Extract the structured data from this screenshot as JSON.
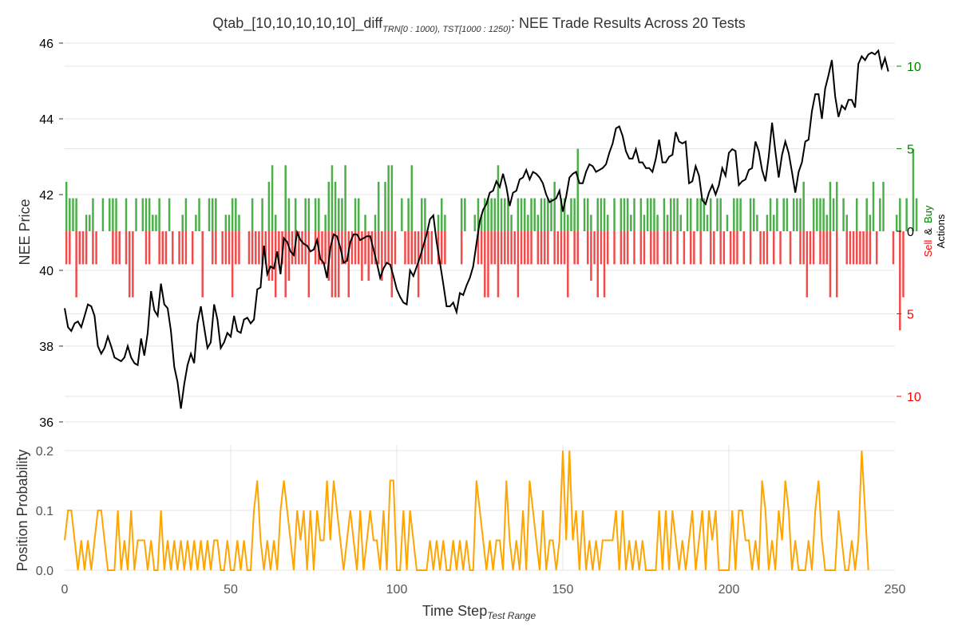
{
  "chart_title": {
    "prefix": "Qtab_[10,10,10,10,10]_diff",
    "subscript": "TRN[0 : 1000), TST[1000 : 1250)",
    "suffix": ": NEE Trade Results Across 20 Tests"
  },
  "colors": {
    "price": "#000000",
    "buy": "#4daf4a",
    "sell": "#f04c4c",
    "position": "#ffa500",
    "buy_text": "#008000",
    "sell_text": "#ff0000"
  },
  "chart_data": [
    {
      "type": "line",
      "name": "price-panel",
      "ylabel": "NEE Price",
      "ylim": [
        35.8,
        46.2
      ],
      "xlim": [
        0,
        250
      ],
      "yticks": [
        36,
        38,
        40,
        42,
        44,
        46
      ],
      "grid": true,
      "x": "0..249 (one value per time step)",
      "y": [
        39.0,
        38.5,
        38.4,
        38.6,
        38.65,
        38.5,
        38.8,
        39.1,
        39.05,
        38.8,
        38.0,
        37.8,
        37.95,
        38.25,
        38.0,
        37.7,
        37.65,
        37.6,
        37.7,
        38.0,
        37.7,
        37.55,
        37.5,
        38.2,
        37.75,
        38.35,
        39.45,
        38.95,
        38.8,
        39.65,
        39.1,
        39.0,
        38.4,
        37.45,
        37.05,
        36.35,
        37.0,
        37.5,
        37.8,
        37.55,
        38.6,
        39.05,
        38.5,
        37.95,
        38.1,
        39.1,
        38.7,
        37.95,
        38.1,
        38.35,
        38.25,
        38.8,
        38.4,
        38.35,
        38.7,
        38.75,
        38.6,
        38.7,
        39.5,
        39.55,
        40.65,
        39.9,
        40.1,
        40.05,
        40.5,
        39.9,
        40.85,
        40.75,
        40.5,
        40.4,
        41.0,
        40.8,
        40.7,
        40.65,
        40.5,
        40.55,
        40.8,
        40.3,
        40.2,
        39.8,
        40.6,
        40.95,
        40.9,
        40.6,
        40.2,
        40.25,
        40.75,
        40.95,
        40.95,
        40.8,
        40.85,
        40.9,
        40.9,
        40.55,
        40.2,
        39.8,
        40.05,
        40.2,
        40.15,
        39.85,
        39.5,
        39.3,
        39.15,
        39.1,
        40.0,
        39.85,
        40.1,
        40.35,
        40.65,
        40.95,
        41.35,
        41.45,
        40.75,
        40.2,
        39.65,
        39.05,
        39.05,
        39.15,
        38.9,
        39.4,
        39.35,
        39.6,
        39.8,
        40.1,
        40.7,
        41.3,
        41.6,
        41.75,
        42.05,
        42.1,
        42.35,
        42.2,
        42.55,
        42.2,
        41.7,
        42.05,
        42.1,
        42.4,
        42.45,
        42.65,
        42.4,
        42.6,
        42.55,
        42.45,
        42.3,
        42.0,
        41.8,
        41.85,
        41.9,
        42.1,
        41.55,
        41.95,
        42.45,
        42.55,
        42.6,
        42.3,
        42.3,
        42.6,
        42.8,
        42.75,
        42.6,
        42.65,
        42.7,
        42.8,
        43.1,
        43.35,
        43.75,
        43.8,
        43.55,
        43.15,
        42.95,
        42.95,
        43.2,
        42.85,
        42.85,
        42.7,
        42.7,
        42.6,
        42.95,
        43.45,
        42.85,
        42.85,
        43.0,
        43.05,
        43.65,
        43.4,
        43.35,
        43.4,
        42.3,
        42.35,
        42.75,
        42.5,
        41.85,
        41.75,
        42.05,
        42.25,
        42.0,
        42.25,
        42.7,
        42.5,
        43.1,
        43.2,
        43.15,
        42.25,
        42.35,
        42.4,
        42.65,
        42.7,
        43.4,
        43.15,
        42.65,
        42.35,
        43.0,
        43.9,
        43.15,
        42.45,
        43.05,
        43.4,
        43.1,
        42.6,
        42.05,
        42.6,
        42.85,
        43.4,
        43.45,
        44.2,
        44.65,
        44.65,
        44.0,
        44.8,
        45.15,
        45.55,
        44.6,
        44.05,
        44.35,
        44.25,
        44.5,
        44.5,
        44.3,
        45.45,
        45.65,
        45.55,
        45.7,
        45.75,
        45.7,
        45.8,
        45.35,
        45.6,
        45.25
      ]
    },
    {
      "type": "bar",
      "name": "trade-actions",
      "ylabel_parts": [
        "Sell",
        "&",
        "Buy",
        "Actions"
      ],
      "yticks": [
        10,
        5,
        0,
        5,
        10
      ],
      "ylim": [
        -12,
        12
      ],
      "x": "0..249 (one bar pair per time step)",
      "buy": [
        3,
        2,
        2,
        2,
        0,
        0,
        1,
        1,
        2,
        0,
        0,
        2,
        0,
        2,
        2,
        2,
        0,
        0,
        2,
        0,
        0,
        2,
        0,
        2,
        2,
        2,
        1,
        1,
        2,
        0,
        0,
        2,
        0,
        0,
        0,
        1,
        2,
        0,
        0,
        1,
        2,
        0,
        0,
        2,
        2,
        2,
        0,
        0,
        1,
        1,
        2,
        2,
        1,
        0,
        0,
        0,
        2,
        0,
        0,
        2,
        0,
        3,
        4,
        1,
        0,
        0,
        4,
        2,
        0,
        2,
        0,
        0,
        2,
        2,
        0,
        2,
        2,
        0,
        1,
        3,
        4,
        3,
        2,
        2,
        4,
        0,
        0,
        2,
        2,
        0,
        1,
        0,
        0,
        1,
        3,
        0,
        3,
        4,
        4,
        0,
        0,
        2,
        0,
        2,
        4,
        0,
        0,
        2,
        2,
        0,
        0,
        0,
        1,
        2,
        1,
        0,
        0,
        0,
        0,
        2,
        2,
        0,
        0,
        1,
        2,
        1,
        2,
        2,
        2,
        2,
        4,
        2,
        2,
        2,
        1,
        0,
        2,
        2,
        2,
        1,
        2,
        2,
        1,
        2,
        2,
        2,
        2,
        3,
        0,
        2,
        2,
        1,
        2,
        2,
        5,
        0,
        2,
        2,
        1,
        0,
        2,
        2,
        2,
        1,
        0,
        2,
        0,
        2,
        2,
        2,
        1,
        2,
        0,
        2,
        1,
        2,
        2,
        2,
        1,
        0,
        2,
        1,
        2,
        2,
        2,
        1,
        0,
        2,
        2,
        0,
        2,
        2,
        2,
        1,
        2,
        0,
        2,
        2,
        0,
        1,
        0,
        2,
        2,
        2,
        0,
        0,
        2,
        2,
        1,
        0,
        0,
        1,
        2,
        1,
        2,
        0,
        2,
        2,
        0,
        2,
        2,
        2,
        3,
        0,
        0,
        2,
        2,
        2,
        2,
        1,
        3,
        2,
        3,
        0,
        2,
        1,
        0,
        0,
        2,
        0,
        0,
        2,
        1,
        3,
        0,
        2,
        3,
        0,
        0,
        0,
        1,
        2,
        0,
        2,
        0,
        5,
        2
      ],
      "sell": [
        2,
        2,
        0,
        4,
        2,
        2,
        2,
        0,
        2,
        2,
        0,
        0,
        0,
        0,
        2,
        2,
        2,
        0,
        2,
        4,
        4,
        0,
        0,
        0,
        2,
        2,
        0,
        0,
        2,
        2,
        2,
        0,
        2,
        0,
        2,
        2,
        2,
        0,
        2,
        0,
        0,
        4,
        0,
        0,
        2,
        2,
        0,
        2,
        2,
        2,
        4,
        2,
        2,
        0,
        0,
        2,
        2,
        2,
        2,
        2,
        2,
        3,
        3,
        4,
        2,
        2,
        4,
        3,
        2,
        2,
        2,
        2,
        2,
        4,
        0,
        2,
        2,
        2,
        2,
        3,
        4,
        4,
        4,
        2,
        2,
        4,
        2,
        2,
        2,
        3,
        2,
        3,
        2,
        2,
        2,
        3,
        2,
        2,
        4,
        2,
        0,
        0,
        2,
        2,
        2,
        2,
        4,
        2,
        2,
        2,
        2,
        0,
        2,
        2,
        2,
        0,
        0,
        0,
        0,
        2,
        0,
        0,
        0,
        0,
        2,
        2,
        4,
        4,
        2,
        2,
        4,
        2,
        2,
        2,
        2,
        2,
        4,
        2,
        2,
        2,
        2,
        0,
        2,
        2,
        2,
        2,
        0,
        2,
        2,
        2,
        2,
        4,
        0,
        2,
        2,
        0,
        0,
        2,
        3,
        2,
        4,
        2,
        4,
        2,
        0,
        2,
        0,
        2,
        2,
        2,
        0,
        2,
        0,
        2,
        2,
        0,
        2,
        2,
        2,
        0,
        2,
        2,
        2,
        0,
        2,
        0,
        2,
        0,
        2,
        2,
        0,
        2,
        0,
        0,
        2,
        2,
        0,
        2,
        2,
        0,
        2,
        2,
        2,
        0,
        2,
        0,
        2,
        0,
        0,
        2,
        2,
        2,
        0,
        2,
        0,
        2,
        0,
        0,
        2,
        0,
        0,
        2,
        2,
        4,
        2,
        2,
        0,
        2,
        2,
        2,
        4,
        0,
        4,
        0,
        0,
        2,
        2,
        2,
        2,
        2,
        2,
        2,
        2,
        0,
        2,
        0,
        0,
        0,
        0,
        2,
        0,
        6,
        4
      ]
    },
    {
      "type": "line",
      "name": "position-panel",
      "ylabel": "Position Probability",
      "xlabel": "Time Step",
      "xlabel_sub": "Test Range",
      "ylim": [
        0,
        0.21
      ],
      "xlim": [
        0,
        250
      ],
      "yticks": [
        "0.0",
        "0.1",
        "0.2"
      ],
      "xticks": [
        0,
        50,
        100,
        150,
        200,
        250
      ],
      "grid": true,
      "y": [
        0.05,
        0.1,
        0.1,
        0.05,
        0,
        0.05,
        0,
        0.05,
        0,
        0.05,
        0.1,
        0.1,
        0.05,
        0,
        0,
        0,
        0.1,
        0,
        0.05,
        0,
        0.1,
        0,
        0.05,
        0.05,
        0.05,
        0,
        0.05,
        0,
        0,
        0.1,
        0,
        0.05,
        0,
        0.05,
        0,
        0.05,
        0,
        0.05,
        0,
        0.05,
        0,
        0.05,
        0,
        0.05,
        0,
        0.05,
        0.05,
        0,
        0,
        0.05,
        0,
        0,
        0.05,
        0,
        0.05,
        0,
        0,
        0.1,
        0.15,
        0.05,
        0,
        0.05,
        0,
        0.05,
        0,
        0.1,
        0.15,
        0.1,
        0.05,
        0,
        0.1,
        0.05,
        0.1,
        0,
        0.1,
        0,
        0.1,
        0.05,
        0.05,
        0.15,
        0.05,
        0.15,
        0.1,
        0.05,
        0,
        0.05,
        0.1,
        0.05,
        0,
        0.1,
        0,
        0.05,
        0.1,
        0.05,
        0.05,
        0,
        0.1,
        0,
        0.15,
        0.15,
        0,
        0,
        0.1,
        0,
        0.1,
        0.05,
        0,
        0,
        0,
        0,
        0.05,
        0,
        0.05,
        0,
        0.05,
        0,
        0,
        0.05,
        0,
        0.05,
        0,
        0.05,
        0,
        0,
        0.15,
        0.1,
        0.05,
        0,
        0.05,
        0,
        0.05,
        0.05,
        0,
        0.15,
        0.05,
        0,
        0.05,
        0,
        0.1,
        0,
        0.15,
        0.1,
        0.05,
        0,
        0.1,
        0,
        0.05,
        0.05,
        0,
        0.05,
        0.2,
        0.05,
        0.2,
        0.05,
        0.1,
        0,
        0.1,
        0,
        0.05,
        0,
        0.05,
        0,
        0.05,
        0.05,
        0.05,
        0.05,
        0.1,
        0,
        0.1,
        0,
        0.05,
        0,
        0.05,
        0,
        0.05,
        0,
        0,
        0,
        0,
        0.1,
        0,
        0.1,
        0,
        0.1,
        0.05,
        0,
        0.05,
        0,
        0.05,
        0.1,
        0,
        0.05,
        0.1,
        0,
        0.1,
        0.05,
        0.1,
        0,
        0,
        0,
        0,
        0.1,
        0,
        0.1,
        0.1,
        0.05,
        0.05,
        0,
        0.05,
        0,
        0.15,
        0.1,
        0,
        0.05,
        0,
        0.1,
        0.05,
        0.15,
        0.1,
        0,
        0.05,
        0,
        0,
        0,
        0.05,
        0,
        0.1,
        0.15,
        0.05,
        0,
        0,
        0,
        0,
        0.1,
        0.05,
        0,
        0,
        0.05,
        0,
        0.05,
        0.2,
        0.1,
        0
      ]
    }
  ]
}
